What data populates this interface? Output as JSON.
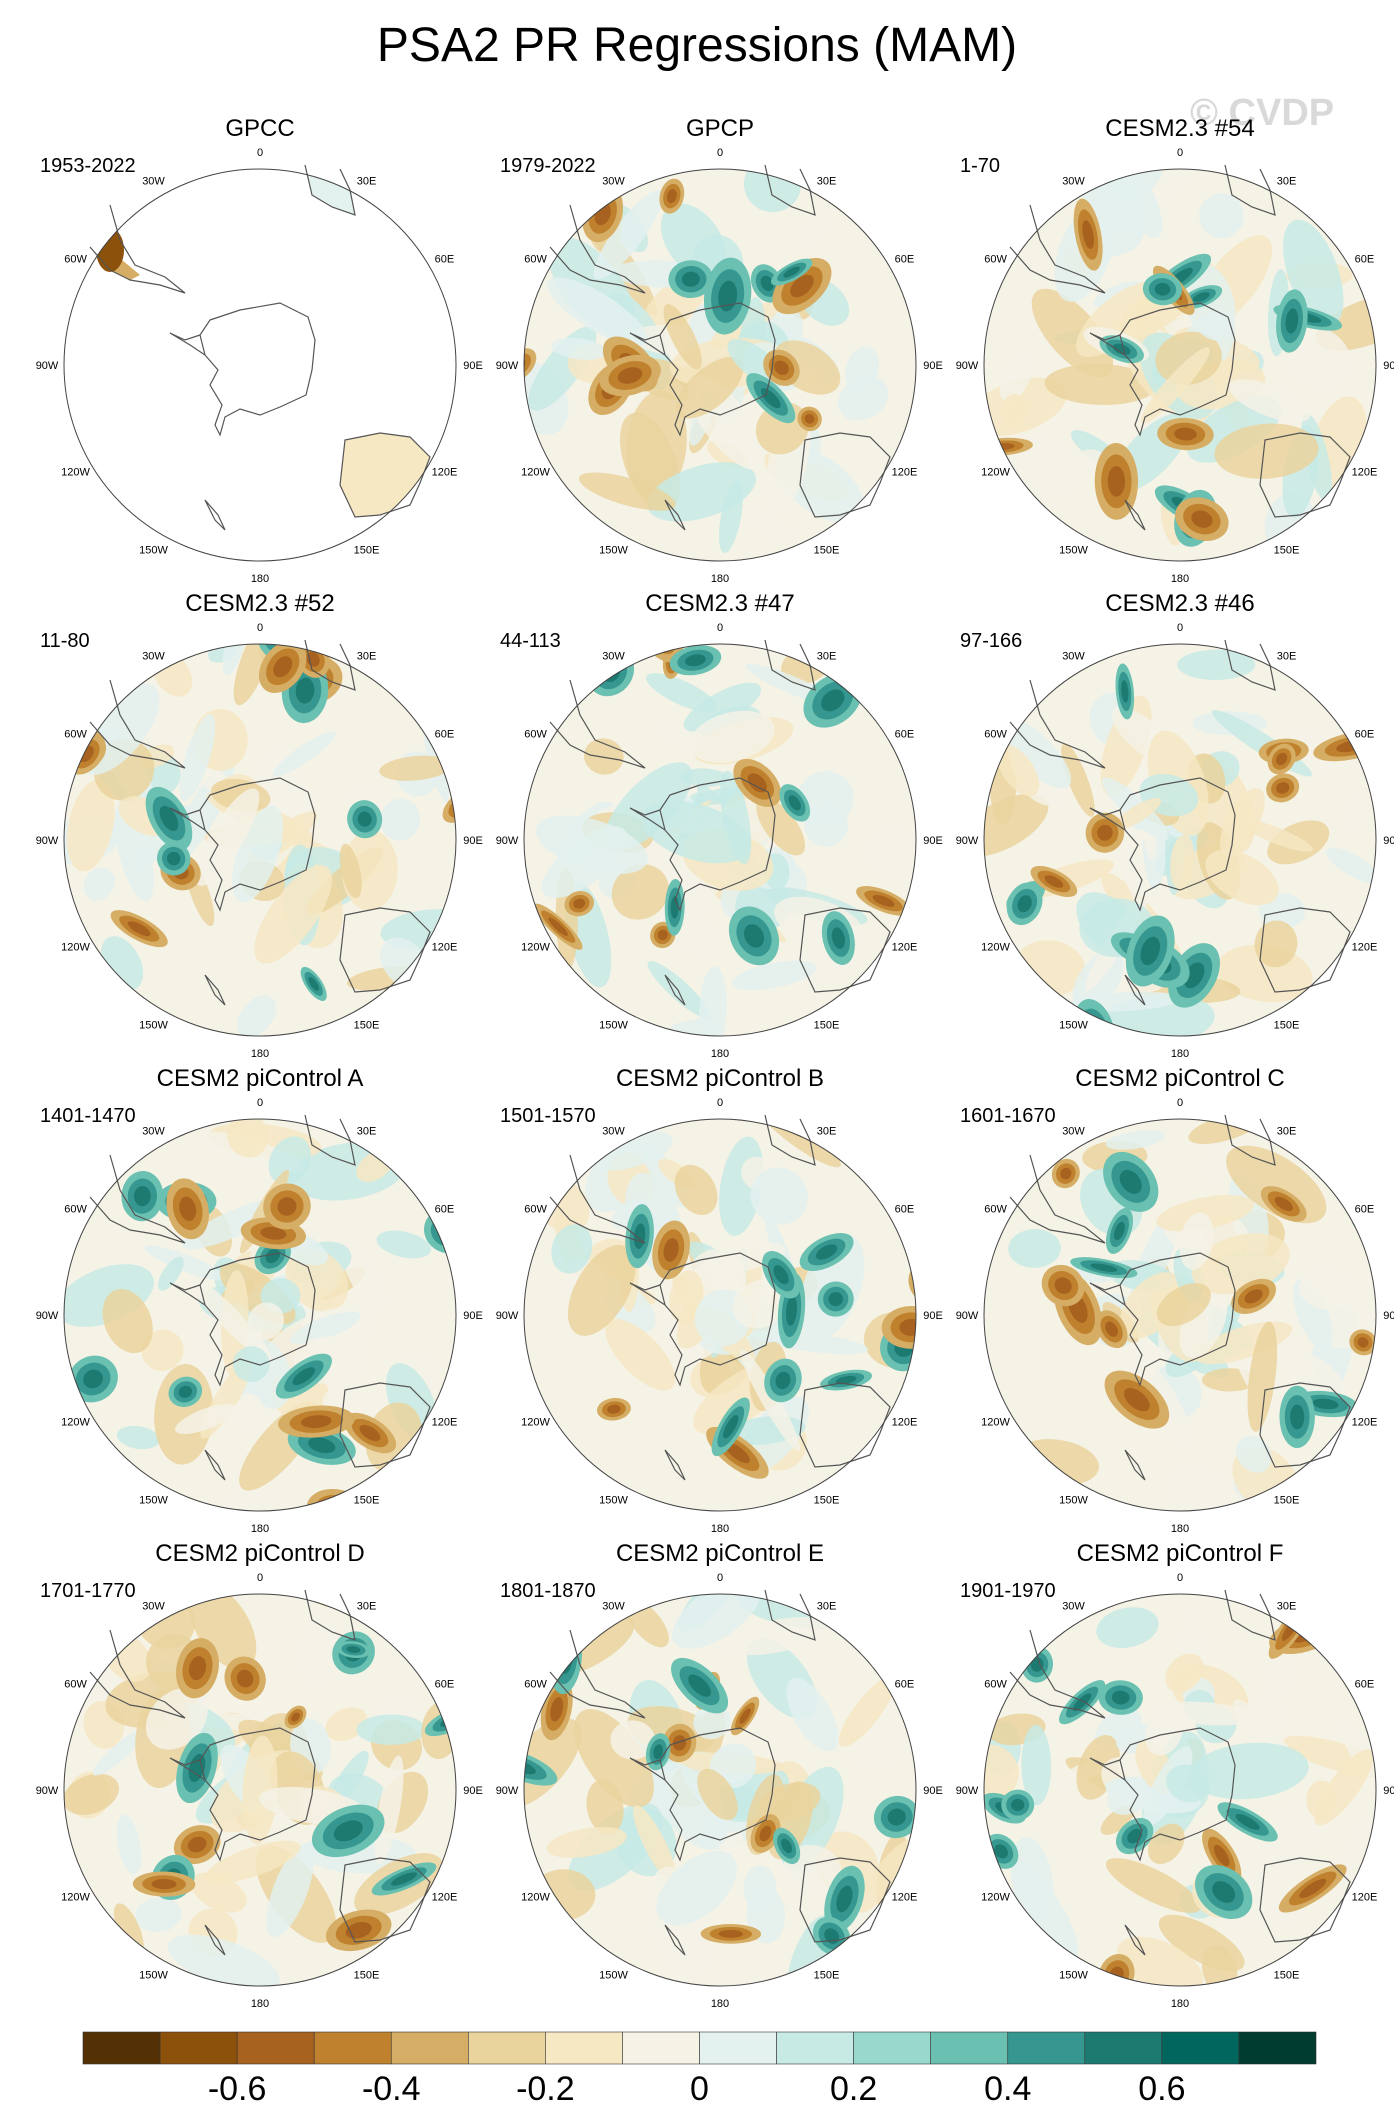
{
  "title": "PSA2 PR Regressions (MAM)",
  "watermark": "© CVDP",
  "lon_labels": [
    "0",
    "30E",
    "60E",
    "90E",
    "120E",
    "150E",
    "180",
    "150W",
    "120W",
    "90W",
    "60W",
    "30W"
  ],
  "panels": [
    {
      "title": "GPCC",
      "years": "1953-2022",
      "land_only": true
    },
    {
      "title": "GPCP",
      "years": "1979-2022",
      "land_only": false
    },
    {
      "title": "CESM2.3 #54",
      "years": "1-70",
      "land_only": false
    },
    {
      "title": "CESM2.3 #52",
      "years": "11-80",
      "land_only": false
    },
    {
      "title": "CESM2.3 #47",
      "years": "44-113",
      "land_only": false
    },
    {
      "title": "CESM2.3 #46",
      "years": "97-166",
      "land_only": false
    },
    {
      "title": "CESM2 piControl A",
      "years": "1401-1470",
      "land_only": false
    },
    {
      "title": "CESM2 piControl B",
      "years": "1501-1570",
      "land_only": false
    },
    {
      "title": "CESM2 piControl C",
      "years": "1601-1670",
      "land_only": false
    },
    {
      "title": "CESM2 piControl D",
      "years": "1701-1770",
      "land_only": false
    },
    {
      "title": "CESM2 piControl E",
      "years": "1801-1870",
      "land_only": false
    },
    {
      "title": "CESM2 piControl F",
      "years": "1901-1970",
      "land_only": false
    }
  ],
  "colorbar": {
    "colors": [
      "#543005",
      "#8c510a",
      "#a76220",
      "#bf812d",
      "#d5ad64",
      "#ead49e",
      "#f6e8c3",
      "#f5f2e6",
      "#e3f1ef",
      "#c7eae5",
      "#99d8cc",
      "#6ac0b1",
      "#35978f",
      "#1c7a71",
      "#01665e",
      "#003c30"
    ],
    "tick_labels": [
      "-0.6",
      "-0.4",
      "-0.2",
      "0",
      "0.2",
      "0.4",
      "0.6"
    ],
    "tick_values": [
      -0.6,
      -0.4,
      -0.2,
      0,
      0.2,
      0.4,
      0.6
    ],
    "min": -0.8,
    "max": 0.8
  }
}
